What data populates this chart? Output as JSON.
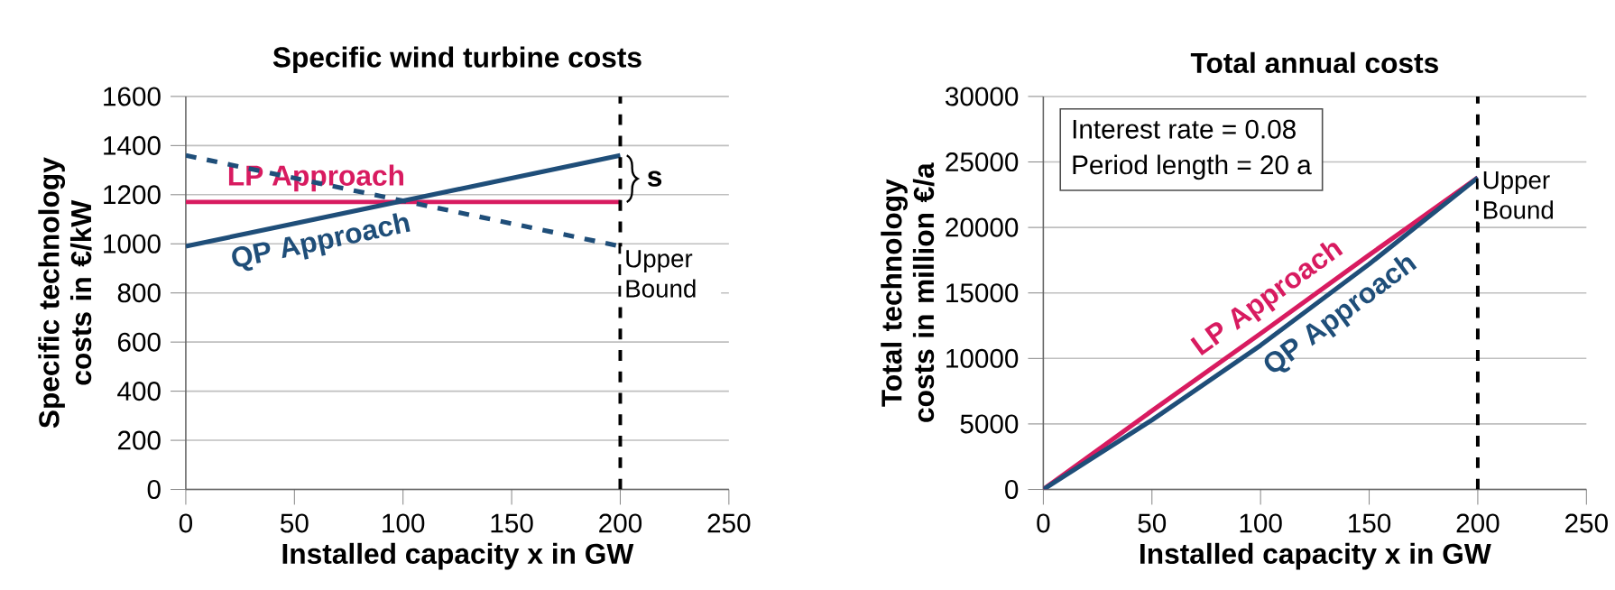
{
  "chart_data": [
    {
      "type": "line",
      "title": "Specific wind turbine costs",
      "xlabel": "Installed capacity x in GW",
      "ylabel": "Specific technology costs in €/kW",
      "xlim": [
        0,
        250
      ],
      "xticks": [
        0,
        50,
        100,
        150,
        200,
        250
      ],
      "ylim": [
        0,
        1600
      ],
      "yticks": [
        0,
        200,
        400,
        600,
        800,
        1000,
        1200,
        1400,
        1600
      ],
      "grid": "y",
      "marker": "none",
      "series": [
        {
          "name": "LP Approach",
          "color": "#d81b60",
          "x": [
            0,
            200
          ],
          "values": [
            1170,
            1170
          ],
          "line_style": "solid"
        },
        {
          "name": "QP Approach",
          "color": "#1f4e79",
          "x": [
            0,
            200
          ],
          "values": [
            990,
            1360
          ],
          "line_style": "solid"
        },
        {
          "color": "#1f4e79",
          "x": [
            0,
            200
          ],
          "values": [
            1360,
            990
          ],
          "line_style": "dashed"
        }
      ],
      "ref_lines": [
        {
          "axis": "x",
          "value": 200,
          "label": "Upper Bound",
          "line_style": "dashed",
          "color": "#000000"
        }
      ],
      "annotations": [
        {
          "text": "s",
          "x": 200,
          "y": 1265
        }
      ]
    },
    {
      "type": "line",
      "title": "Total annual costs",
      "xlabel": "Installed capacity x in GW",
      "ylabel": "Total technology costs in million €/a",
      "xlim": [
        0,
        250
      ],
      "xticks": [
        0,
        50,
        100,
        150,
        200,
        250
      ],
      "ylim": [
        0,
        30000
      ],
      "yticks": [
        0,
        5000,
        10000,
        15000,
        20000,
        25000,
        30000
      ],
      "grid": "y",
      "marker": "none",
      "series": [
        {
          "name": "LP Approach",
          "color": "#d81b60",
          "x": [
            0,
            50,
            100,
            150,
            200
          ],
          "values": [
            0,
            6000,
            11900,
            17900,
            23800
          ],
          "line_style": "solid"
        },
        {
          "name": "QP Approach",
          "color": "#1f4e79",
          "x": [
            0,
            50,
            100,
            150,
            200
          ],
          "values": [
            0,
            5300,
            11000,
            17200,
            23800
          ],
          "line_style": "solid"
        }
      ],
      "ref_lines": [
        {
          "axis": "x",
          "value": 200,
          "label": "Upper Bound",
          "line_style": "dashed",
          "color": "#000000"
        }
      ],
      "annotations": [
        "Interest rate  = 0.08",
        "Period length = 20 a"
      ]
    }
  ]
}
